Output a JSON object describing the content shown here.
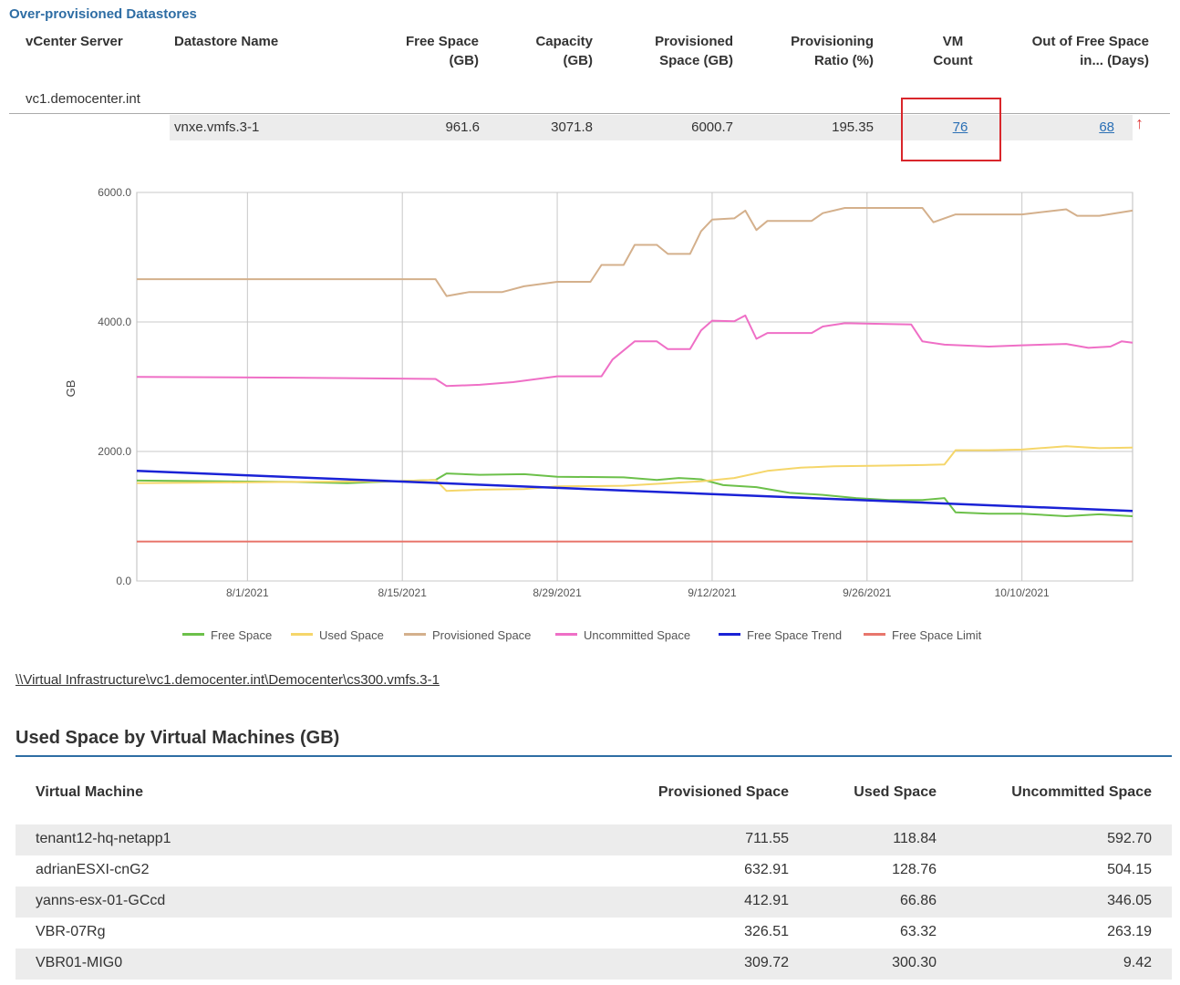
{
  "section_title": "Over-provisioned Datastores",
  "datastore_table": {
    "headers": {
      "vcenter": "vCenter Server",
      "name": "Datastore Name",
      "free_1": "Free Space",
      "free_2": "(GB)",
      "cap_1": "Capacity",
      "cap_2": "(GB)",
      "prov_1": "Provisioned",
      "prov_2": "Space (GB)",
      "ratio_1": "Provisioning",
      "ratio_2": "Ratio (%)",
      "vm_1": "VM",
      "vm_2": "Count",
      "out_1": "Out of Free Space",
      "out_2": "in... (Days)"
    },
    "vcenter_server": "vc1.democenter.int",
    "row": {
      "datastore_name": "vnxe.vmfs.3-1",
      "free_space": "961.6",
      "capacity": "3071.8",
      "provisioned": "6000.7",
      "ratio": "195.35",
      "vm_count": "76",
      "days": "68"
    },
    "trend_arrow": "↑"
  },
  "chart_data": {
    "type": "line",
    "ylabel": "GB",
    "ylim": [
      0,
      6000
    ],
    "yticks": [
      "6000.0",
      "4000.0",
      "2000.0",
      "0.0"
    ],
    "xlim": [
      "2021-07-22",
      "2021-10-20"
    ],
    "xticks": [
      "8/1/2021",
      "8/15/2021",
      "8/29/2021",
      "9/12/2021",
      "9/26/2021",
      "10/10/2021"
    ],
    "grid": true,
    "legend_position": "bottom",
    "series": [
      {
        "name": "Free Space",
        "color": "#6cc04a",
        "points": [
          [
            "2021-07-22",
            1550
          ],
          [
            "2021-08-05",
            1530
          ],
          [
            "2021-08-10",
            1510
          ],
          [
            "2021-08-14",
            1540
          ],
          [
            "2021-08-18",
            1560
          ],
          [
            "2021-08-19",
            1660
          ],
          [
            "2021-08-22",
            1640
          ],
          [
            "2021-08-26",
            1650
          ],
          [
            "2021-08-29",
            1610
          ],
          [
            "2021-09-04",
            1600
          ],
          [
            "2021-09-07",
            1560
          ],
          [
            "2021-09-09",
            1590
          ],
          [
            "2021-09-11",
            1570
          ],
          [
            "2021-09-13",
            1480
          ],
          [
            "2021-09-16",
            1450
          ],
          [
            "2021-09-19",
            1360
          ],
          [
            "2021-09-22",
            1330
          ],
          [
            "2021-09-25",
            1280
          ],
          [
            "2021-09-28",
            1250
          ],
          [
            "2021-10-01",
            1250
          ],
          [
            "2021-10-03",
            1280
          ],
          [
            "2021-10-04",
            1060
          ],
          [
            "2021-10-07",
            1040
          ],
          [
            "2021-10-10",
            1040
          ],
          [
            "2021-10-14",
            1000
          ],
          [
            "2021-10-17",
            1030
          ],
          [
            "2021-10-20",
            1000
          ]
        ]
      },
      {
        "name": "Used Space",
        "color": "#f5d66a",
        "points": [
          [
            "2021-07-22",
            1510
          ],
          [
            "2021-08-05",
            1530
          ],
          [
            "2021-08-14",
            1540
          ],
          [
            "2021-08-18",
            1560
          ],
          [
            "2021-08-19",
            1390
          ],
          [
            "2021-08-22",
            1410
          ],
          [
            "2021-08-26",
            1420
          ],
          [
            "2021-08-29",
            1460
          ],
          [
            "2021-09-04",
            1470
          ],
          [
            "2021-09-07",
            1500
          ],
          [
            "2021-09-11",
            1540
          ],
          [
            "2021-09-14",
            1590
          ],
          [
            "2021-09-17",
            1700
          ],
          [
            "2021-09-20",
            1750
          ],
          [
            "2021-09-23",
            1770
          ],
          [
            "2021-09-27",
            1780
          ],
          [
            "2021-10-01",
            1790
          ],
          [
            "2021-10-03",
            1800
          ],
          [
            "2021-10-04",
            2020
          ],
          [
            "2021-10-07",
            2020
          ],
          [
            "2021-10-10",
            2030
          ],
          [
            "2021-10-14",
            2080
          ],
          [
            "2021-10-17",
            2050
          ],
          [
            "2021-10-20",
            2060
          ]
        ]
      },
      {
        "name": "Provisioned Space",
        "color": "#d4b08c",
        "points": [
          [
            "2021-07-22",
            4660
          ],
          [
            "2021-08-18",
            4660
          ],
          [
            "2021-08-19",
            4400
          ],
          [
            "2021-08-21",
            4460
          ],
          [
            "2021-08-24",
            4460
          ],
          [
            "2021-08-26",
            4550
          ],
          [
            "2021-08-29",
            4620
          ],
          [
            "2021-09-01",
            4620
          ],
          [
            "2021-09-02",
            4880
          ],
          [
            "2021-09-04",
            4880
          ],
          [
            "2021-09-05",
            5190
          ],
          [
            "2021-09-07",
            5190
          ],
          [
            "2021-09-08",
            5050
          ],
          [
            "2021-09-10",
            5050
          ],
          [
            "2021-09-11",
            5400
          ],
          [
            "2021-09-12",
            5580
          ],
          [
            "2021-09-14",
            5600
          ],
          [
            "2021-09-15",
            5720
          ],
          [
            "2021-09-16",
            5420
          ],
          [
            "2021-09-17",
            5560
          ],
          [
            "2021-09-21",
            5560
          ],
          [
            "2021-09-22",
            5680
          ],
          [
            "2021-09-24",
            5760
          ],
          [
            "2021-10-01",
            5760
          ],
          [
            "2021-10-02",
            5540
          ],
          [
            "2021-10-04",
            5660
          ],
          [
            "2021-10-10",
            5660
          ],
          [
            "2021-10-14",
            5740
          ],
          [
            "2021-10-15",
            5640
          ],
          [
            "2021-10-17",
            5640
          ],
          [
            "2021-10-20",
            5720
          ]
        ]
      },
      {
        "name": "Uncommitted Space",
        "color": "#ef6fc6",
        "points": [
          [
            "2021-07-22",
            3150
          ],
          [
            "2021-08-05",
            3140
          ],
          [
            "2021-08-18",
            3120
          ],
          [
            "2021-08-19",
            3010
          ],
          [
            "2021-08-22",
            3030
          ],
          [
            "2021-08-25",
            3070
          ],
          [
            "2021-08-29",
            3160
          ],
          [
            "2021-09-02",
            3160
          ],
          [
            "2021-09-03",
            3420
          ],
          [
            "2021-09-05",
            3700
          ],
          [
            "2021-09-07",
            3700
          ],
          [
            "2021-09-08",
            3580
          ],
          [
            "2021-09-10",
            3580
          ],
          [
            "2021-09-11",
            3870
          ],
          [
            "2021-09-12",
            4020
          ],
          [
            "2021-09-14",
            4010
          ],
          [
            "2021-09-15",
            4100
          ],
          [
            "2021-09-16",
            3740
          ],
          [
            "2021-09-17",
            3830
          ],
          [
            "2021-09-21",
            3830
          ],
          [
            "2021-09-22",
            3930
          ],
          [
            "2021-09-24",
            3980
          ],
          [
            "2021-09-30",
            3960
          ],
          [
            "2021-10-01",
            3700
          ],
          [
            "2021-10-03",
            3650
          ],
          [
            "2021-10-07",
            3620
          ],
          [
            "2021-10-10",
            3640
          ],
          [
            "2021-10-14",
            3660
          ],
          [
            "2021-10-16",
            3600
          ],
          [
            "2021-10-18",
            3620
          ],
          [
            "2021-10-19",
            3700
          ],
          [
            "2021-10-20",
            3680
          ]
        ]
      },
      {
        "name": "Free Space Trend",
        "color": "#1a22d6",
        "points": [
          [
            "2021-07-22",
            1700
          ],
          [
            "2021-10-20",
            1080
          ]
        ]
      },
      {
        "name": "Free Space Limit",
        "color": "#e8766c",
        "points": [
          [
            "2021-07-22",
            610
          ],
          [
            "2021-10-20",
            610
          ]
        ]
      }
    ]
  },
  "datastore_path": "\\\\Virtual Infrastructure\\vc1.democenter.int\\Democenter\\cs300.vmfs.3-1",
  "vm_section": {
    "title": "Used Space by Virtual Machines (GB)",
    "headers": {
      "vm": "Virtual Machine",
      "provisioned": "Provisioned Space",
      "used": "Used Space",
      "uncommitted": "Uncommitted Space"
    },
    "rows": [
      {
        "name": "tenant12-hq-netapp1",
        "provisioned": "711.55",
        "used": "118.84",
        "uncommitted": "592.70"
      },
      {
        "name": "adrianESXI-cnG2",
        "provisioned": "632.91",
        "used": "128.76",
        "uncommitted": "504.15"
      },
      {
        "name": "yanns-esx-01-GCcd",
        "provisioned": "412.91",
        "used": "66.86",
        "uncommitted": "346.05"
      },
      {
        "name": "VBR-07Rg",
        "provisioned": "326.51",
        "used": "63.32",
        "uncommitted": "263.19"
      },
      {
        "name": "VBR01-MIG0",
        "provisioned": "309.72",
        "used": "300.30",
        "uncommitted": "9.42"
      }
    ]
  }
}
